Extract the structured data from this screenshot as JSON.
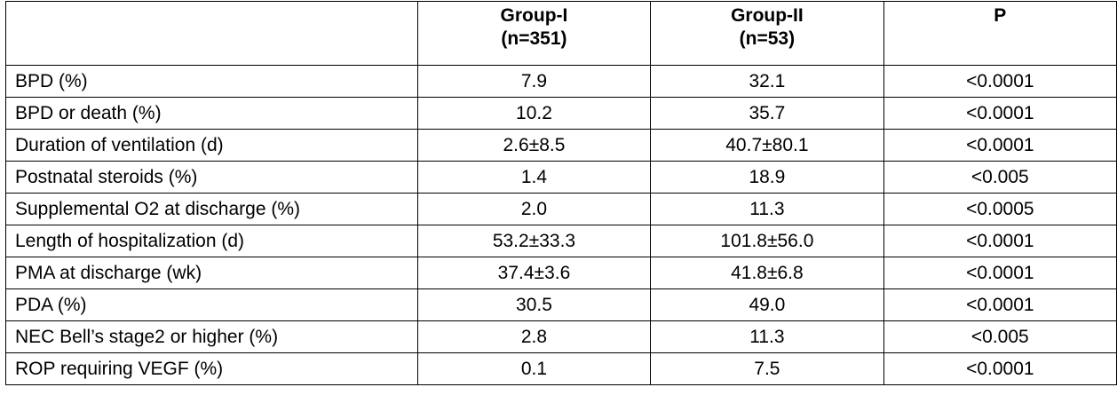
{
  "table": {
    "headers": [
      {
        "line1": "",
        "line2": ""
      },
      {
        "line1": "Group-I",
        "line2": "(n=351)"
      },
      {
        "line1": "Group-II",
        "line2": "(n=53)"
      },
      {
        "line1": "P",
        "line2": ""
      }
    ],
    "rows": [
      {
        "label": "BPD (%)",
        "group1": "7.9",
        "group2": "32.1",
        "p": "<0.0001"
      },
      {
        "label": "BPD or death (%)",
        "group1": "10.2",
        "group2": "35.7",
        "p": "<0.0001"
      },
      {
        "label": "Duration of ventilation (d)",
        "group1": "2.6±8.5",
        "group2": "40.7±80.1",
        "p": "<0.0001"
      },
      {
        "label": "Postnatal steroids (%)",
        "group1": "1.4",
        "group2": "18.9",
        "p": "<0.005"
      },
      {
        "label": "Supplemental O2 at discharge (%)",
        "group1": "2.0",
        "group2": "11.3",
        "p": "<0.0005"
      },
      {
        "label": "Length of hospitalization (d)",
        "group1": "53.2±33.3",
        "group2": "101.8±56.0",
        "p": "<0.0001"
      },
      {
        "label": "PMA at discharge (wk)",
        "group1": "37.4±3.6",
        "group2": "41.8±6.8",
        "p": "<0.0001"
      },
      {
        "label": "PDA (%)",
        "group1": "30.5",
        "group2": "49.0",
        "p": "<0.0001"
      },
      {
        "label": "NEC Bell’s stage2 or higher (%)",
        "group1": "2.8",
        "group2": "11.3",
        "p": "<0.005"
      },
      {
        "label": "ROP requiring VEGF (%)",
        "group1": "0.1",
        "group2": "7.5",
        "p": "<0.0001"
      }
    ]
  }
}
